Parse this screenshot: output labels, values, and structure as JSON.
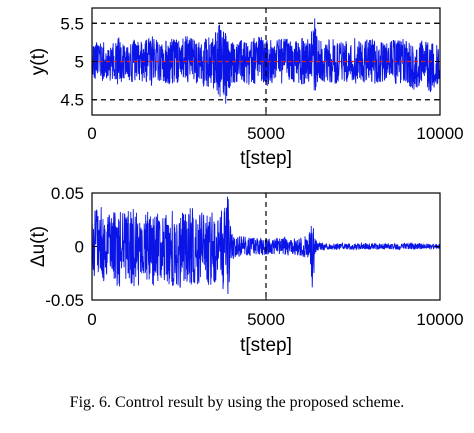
{
  "caption": "Fig. 6.  Control result by using the proposed scheme.",
  "colors": {
    "signal": "#0a14e6",
    "reference": "#d22020",
    "axes": "#000000",
    "grid": "#000000"
  },
  "chart_data": [
    {
      "type": "line",
      "title": "",
      "xlabel": "t[step]",
      "ylabel": "y(t)",
      "xlim": [
        0,
        10000
      ],
      "ylim": [
        4.3,
        5.7
      ],
      "xticks": [
        0,
        5000,
        10000
      ],
      "xtick_labels": [
        "0",
        "5000",
        "10000"
      ],
      "yticks": [
        4.5,
        5,
        5.5
      ],
      "ytick_labels": [
        "4.5",
        "5",
        "5.5"
      ],
      "grid": "dashed reference lines at y = 4.5, y = 5.5 and x = 5000",
      "legend": "none",
      "series": [
        {
          "role": "output",
          "color": "#0a14e6",
          "x": [
            0,
            250,
            500,
            750,
            1000,
            1250,
            1500,
            1750,
            2000,
            2250,
            2500,
            2750,
            3000,
            3250,
            3500,
            3750,
            3800,
            3900,
            4000,
            4250,
            4500,
            4750,
            5000,
            5250,
            5500,
            5750,
            6000,
            6250,
            6400,
            6500,
            6750,
            7000,
            7250,
            7500,
            7750,
            8000,
            8250,
            8500,
            8750,
            9000,
            9250,
            9500,
            9750,
            10000
          ],
          "upper": [
            5.23,
            5.28,
            5.2,
            5.33,
            5.22,
            5.3,
            5.27,
            5.35,
            5.24,
            5.32,
            5.29,
            5.38,
            5.25,
            5.31,
            5.36,
            5.6,
            5.45,
            5.3,
            5.25,
            5.3,
            5.28,
            5.33,
            5.31,
            5.26,
            5.33,
            5.28,
            5.32,
            5.3,
            5.68,
            5.32,
            5.28,
            5.3,
            5.26,
            5.33,
            5.28,
            5.31,
            5.24,
            5.3,
            5.27,
            5.32,
            5.22,
            5.28,
            5.24,
            5.2
          ],
          "lower": [
            4.78,
            4.72,
            4.75,
            4.68,
            4.77,
            4.7,
            4.73,
            4.66,
            4.74,
            4.69,
            4.72,
            4.65,
            4.7,
            4.68,
            4.62,
            4.45,
            4.33,
            4.58,
            4.7,
            4.73,
            4.68,
            4.72,
            4.67,
            4.74,
            4.7,
            4.73,
            4.69,
            4.71,
            4.58,
            4.74,
            4.72,
            4.68,
            4.74,
            4.7,
            4.73,
            4.68,
            4.72,
            4.75,
            4.7,
            4.72,
            4.62,
            4.7,
            4.58,
            4.72
          ]
        },
        {
          "role": "reference",
          "color": "#d22020",
          "x": [
            0,
            10000
          ],
          "y": [
            5.0,
            5.0
          ]
        }
      ]
    },
    {
      "type": "line",
      "title": "",
      "xlabel": "t[step]",
      "ylabel": "Δu(t)",
      "xlim": [
        0,
        10000
      ],
      "ylim": [
        -0.05,
        0.05
      ],
      "xticks": [
        0,
        5000,
        10000
      ],
      "xtick_labels": [
        "0",
        "5000",
        "10000"
      ],
      "yticks": [
        -0.05,
        0,
        0.05
      ],
      "ytick_labels": [
        "-0.05",
        "0",
        "0.05"
      ],
      "grid": "dashed reference line at x = 5000",
      "legend": "none",
      "series": [
        {
          "role": "control-increment",
          "color": "#0a14e6",
          "x": [
            0,
            250,
            500,
            750,
            1000,
            1250,
            1500,
            1750,
            2000,
            2250,
            2500,
            2750,
            3000,
            3250,
            3500,
            3700,
            3800,
            3900,
            4000,
            4250,
            4500,
            4750,
            5000,
            5250,
            5500,
            5750,
            6000,
            6250,
            6350,
            6400,
            6500,
            6750,
            7000,
            7500,
            8000,
            8500,
            9000,
            9500,
            10000
          ],
          "upper": [
            0.032,
            0.038,
            0.03,
            0.035,
            0.033,
            0.037,
            0.03,
            0.036,
            0.028,
            0.034,
            0.031,
            0.035,
            0.038,
            0.03,
            0.034,
            0.03,
            0.05,
            0.05,
            0.012,
            0.01,
            0.009,
            0.008,
            0.007,
            0.008,
            0.009,
            0.008,
            0.009,
            0.012,
            0.028,
            0.008,
            0.0035,
            0.003,
            0.003,
            0.0028,
            0.003,
            0.0027,
            0.003,
            0.0028,
            0.0025
          ],
          "lower": [
            -0.032,
            -0.036,
            -0.03,
            -0.04,
            -0.033,
            -0.042,
            -0.03,
            -0.038,
            -0.031,
            -0.036,
            -0.04,
            -0.035,
            -0.038,
            -0.034,
            -0.04,
            -0.033,
            -0.05,
            -0.05,
            -0.012,
            -0.01,
            -0.009,
            -0.008,
            -0.008,
            -0.007,
            -0.009,
            -0.008,
            -0.009,
            -0.012,
            -0.05,
            -0.008,
            -0.0035,
            -0.003,
            -0.003,
            -0.0028,
            -0.003,
            -0.0027,
            -0.003,
            -0.0028,
            -0.0025
          ]
        }
      ]
    }
  ]
}
